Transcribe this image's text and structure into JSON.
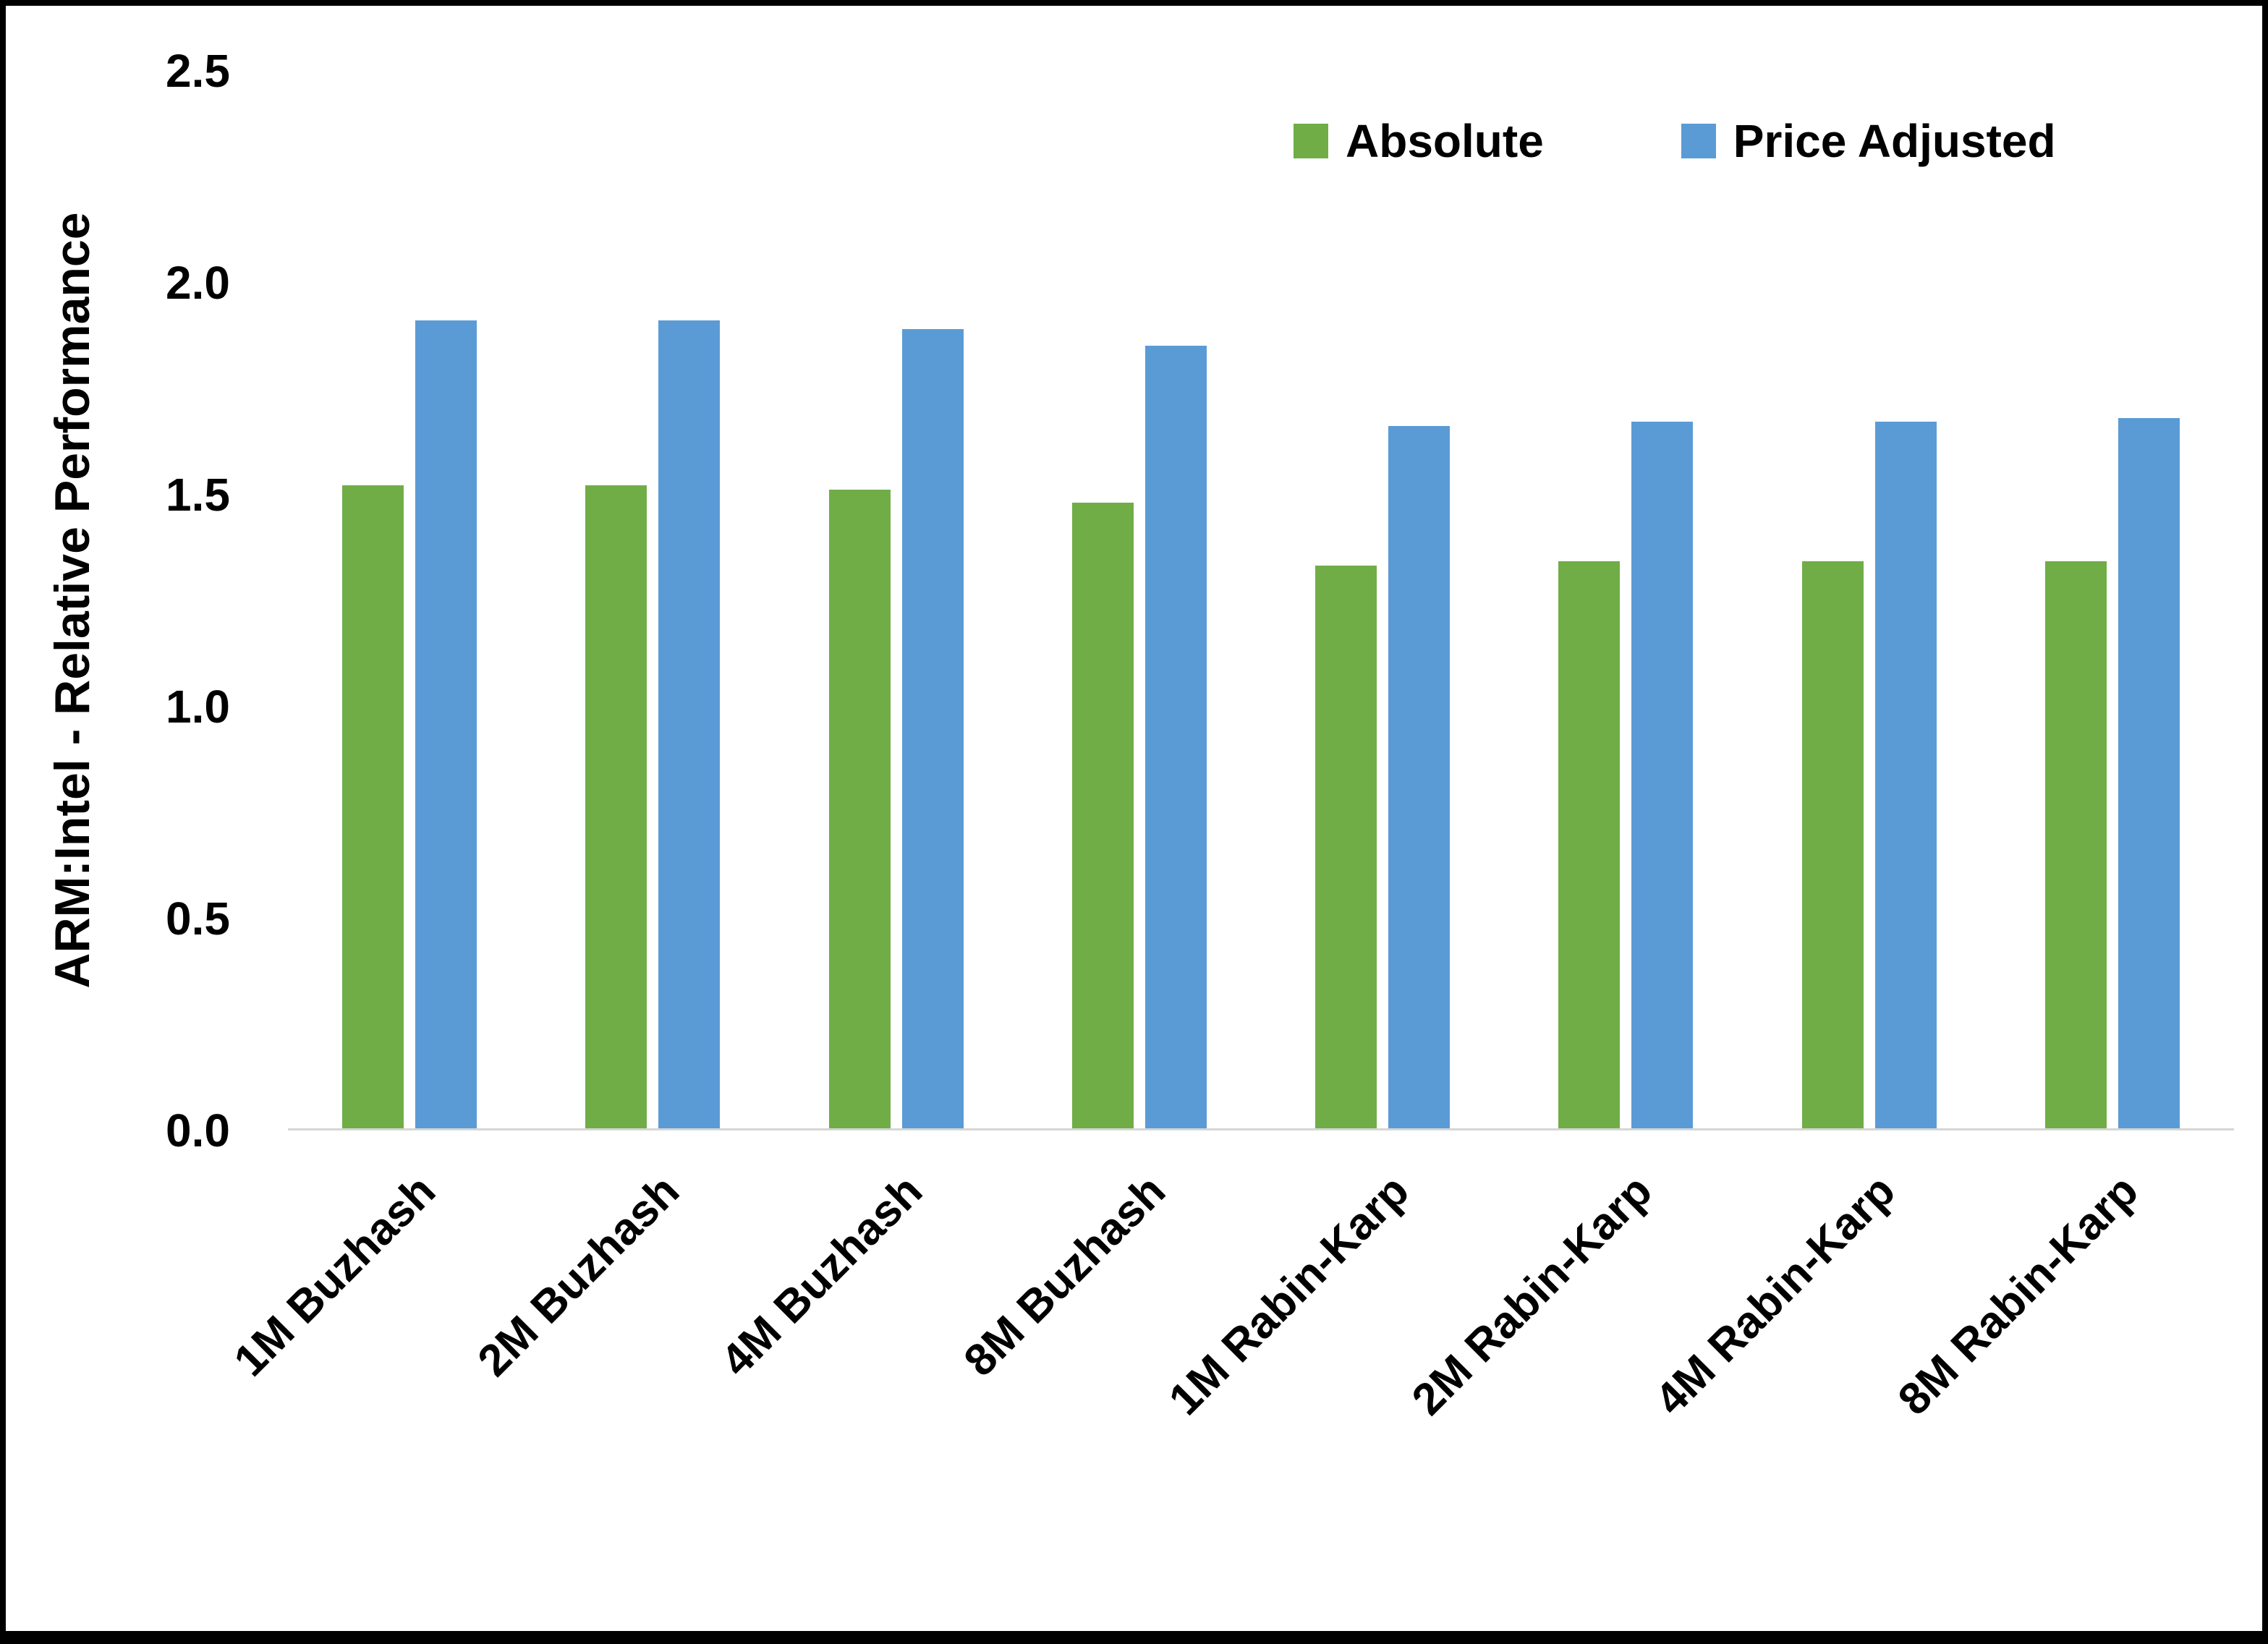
{
  "chart_data": {
    "type": "bar",
    "title": "",
    "xlabel": "",
    "ylabel": "ARM:Intel - Relative Performance",
    "ylim": [
      0,
      2.5
    ],
    "yticks": [
      0.0,
      0.5,
      1.0,
      1.5,
      2.0,
      2.5
    ],
    "ytick_decimals": 1,
    "grid": false,
    "legend_position": "top-right",
    "categories": [
      "1M Buzhash",
      "2M Buzhash",
      "4M Buzhash",
      "8M Buzhash",
      "1M Rabin-Karp",
      "2M Rabin-Karp",
      "4M Rabin-Karp",
      "8M Rabin-Karp"
    ],
    "series": [
      {
        "name": "Absolute",
        "color": "#70AD47",
        "values": [
          1.52,
          1.52,
          1.51,
          1.48,
          1.33,
          1.34,
          1.34,
          1.34
        ]
      },
      {
        "name": "Price Adjusted",
        "color": "#5B9BD5",
        "values": [
          1.91,
          1.91,
          1.89,
          1.85,
          1.66,
          1.67,
          1.67,
          1.68
        ]
      }
    ]
  }
}
